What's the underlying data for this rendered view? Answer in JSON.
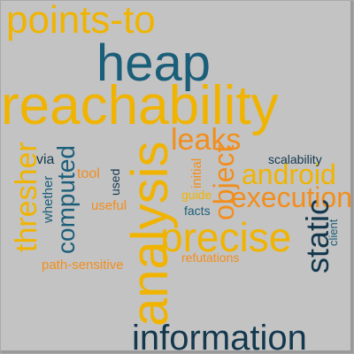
{
  "words": {
    "points_to": "points-to",
    "heap": "heap",
    "reachability": "reachability",
    "analysis": "analysis",
    "leaks": "leaks",
    "android": "android",
    "execution": "execution",
    "object": "object",
    "precise": "precise",
    "static": "static",
    "information": "information",
    "thresher": "thresher",
    "computed": "computed",
    "whether": "whether",
    "via": "via",
    "tool": "tool",
    "used": "used",
    "useful": "useful",
    "path_sensitive": "path-sensitive",
    "initial": "initial",
    "guide": "guide",
    "facts": "facts",
    "refutations": "refutations",
    "scalability": "scalability",
    "client": "client"
  },
  "colors": {
    "background": "#c3c3c3",
    "blue": "#1b5e7a",
    "gold": "#f0b400",
    "orange": "#f28e1c",
    "navy": "#13384e"
  }
}
